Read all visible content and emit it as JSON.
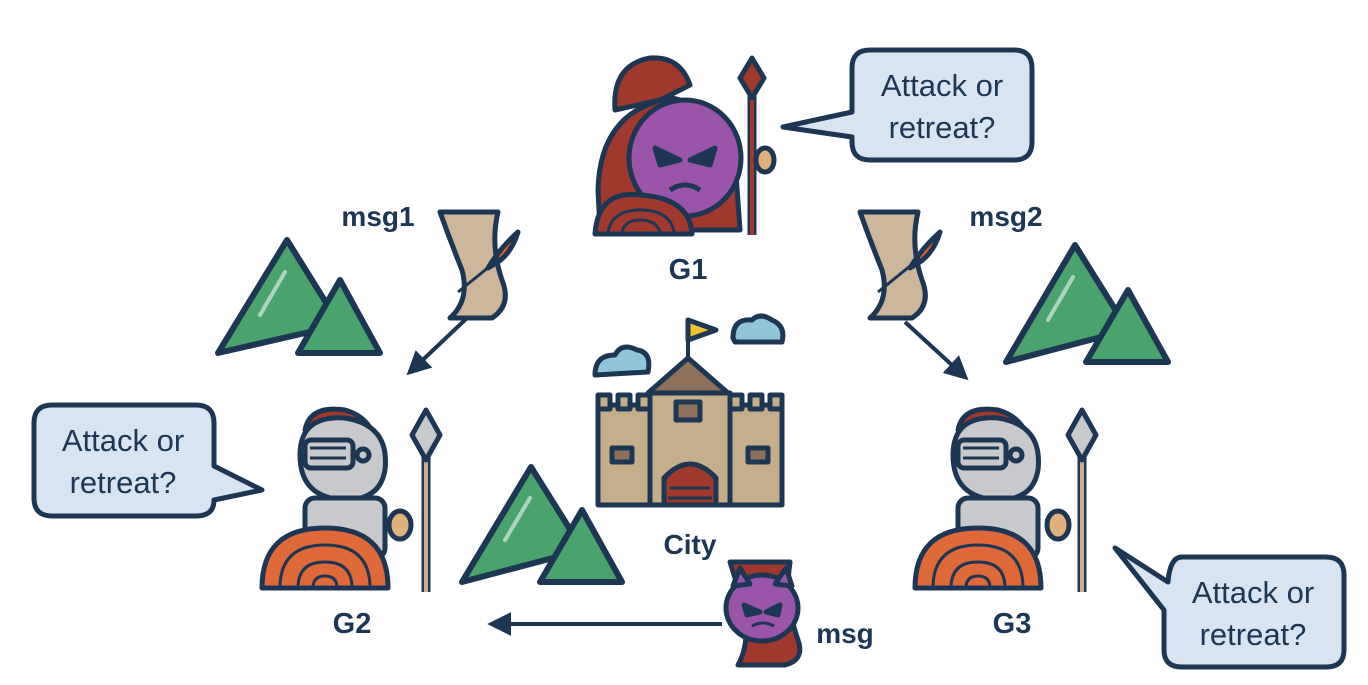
{
  "colors": {
    "ink": "#1c3654",
    "bubble_fill": "#d9e4f2",
    "mountain": "#4aa36d",
    "scroll": "#cdb699",
    "quill": "#e2602a",
    "devil": "#9b55a8",
    "helmet_crest": "#a0392c",
    "armor": "#c7c9cc",
    "shield": "#e0693a",
    "castle": "#c7ae8a",
    "roof": "#8c7059",
    "cloud": "#8fc6dc",
    "flag": "#f2c230"
  },
  "generals": {
    "g1": {
      "label": "G1",
      "icon": "traitor-spartan-devil-icon"
    },
    "g2": {
      "label": "G2",
      "icon": "spartan-soldier-icon"
    },
    "g3": {
      "label": "G3",
      "icon": "spartan-soldier-icon"
    }
  },
  "bubbles": {
    "g1": {
      "line1": "Attack or",
      "line2": "retreat?"
    },
    "g2": {
      "line1": "Attack or",
      "line2": "retreat?"
    },
    "g3": {
      "line1": "Attack or",
      "line2": "retreat?"
    }
  },
  "messages": {
    "msg1": "msg1",
    "msg2": "msg2",
    "forged": "msg"
  },
  "city": {
    "label": "City",
    "icon": "castle-icon"
  }
}
